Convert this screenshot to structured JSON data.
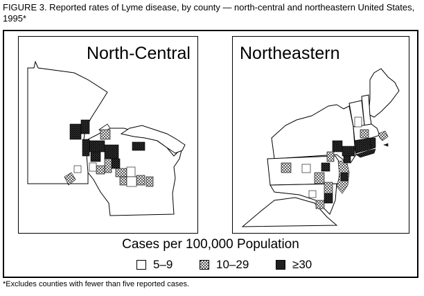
{
  "title": "FIGURE 3. Reported rates of Lyme disease, by county — north-central and northeastern United States, 1995*",
  "panels": {
    "north_central": {
      "label": "North-Central"
    },
    "northeastern": {
      "label": "Northeastern"
    }
  },
  "legend": {
    "title": "Cases per 100,000 Population",
    "items": [
      {
        "label": "5–9",
        "pattern": "empty"
      },
      {
        "label": "10–29",
        "pattern": "crosshatch"
      },
      {
        "label": "≥30",
        "pattern": "dense"
      }
    ]
  },
  "footnote": "*Excludes counties with fewer than five reported cases."
}
